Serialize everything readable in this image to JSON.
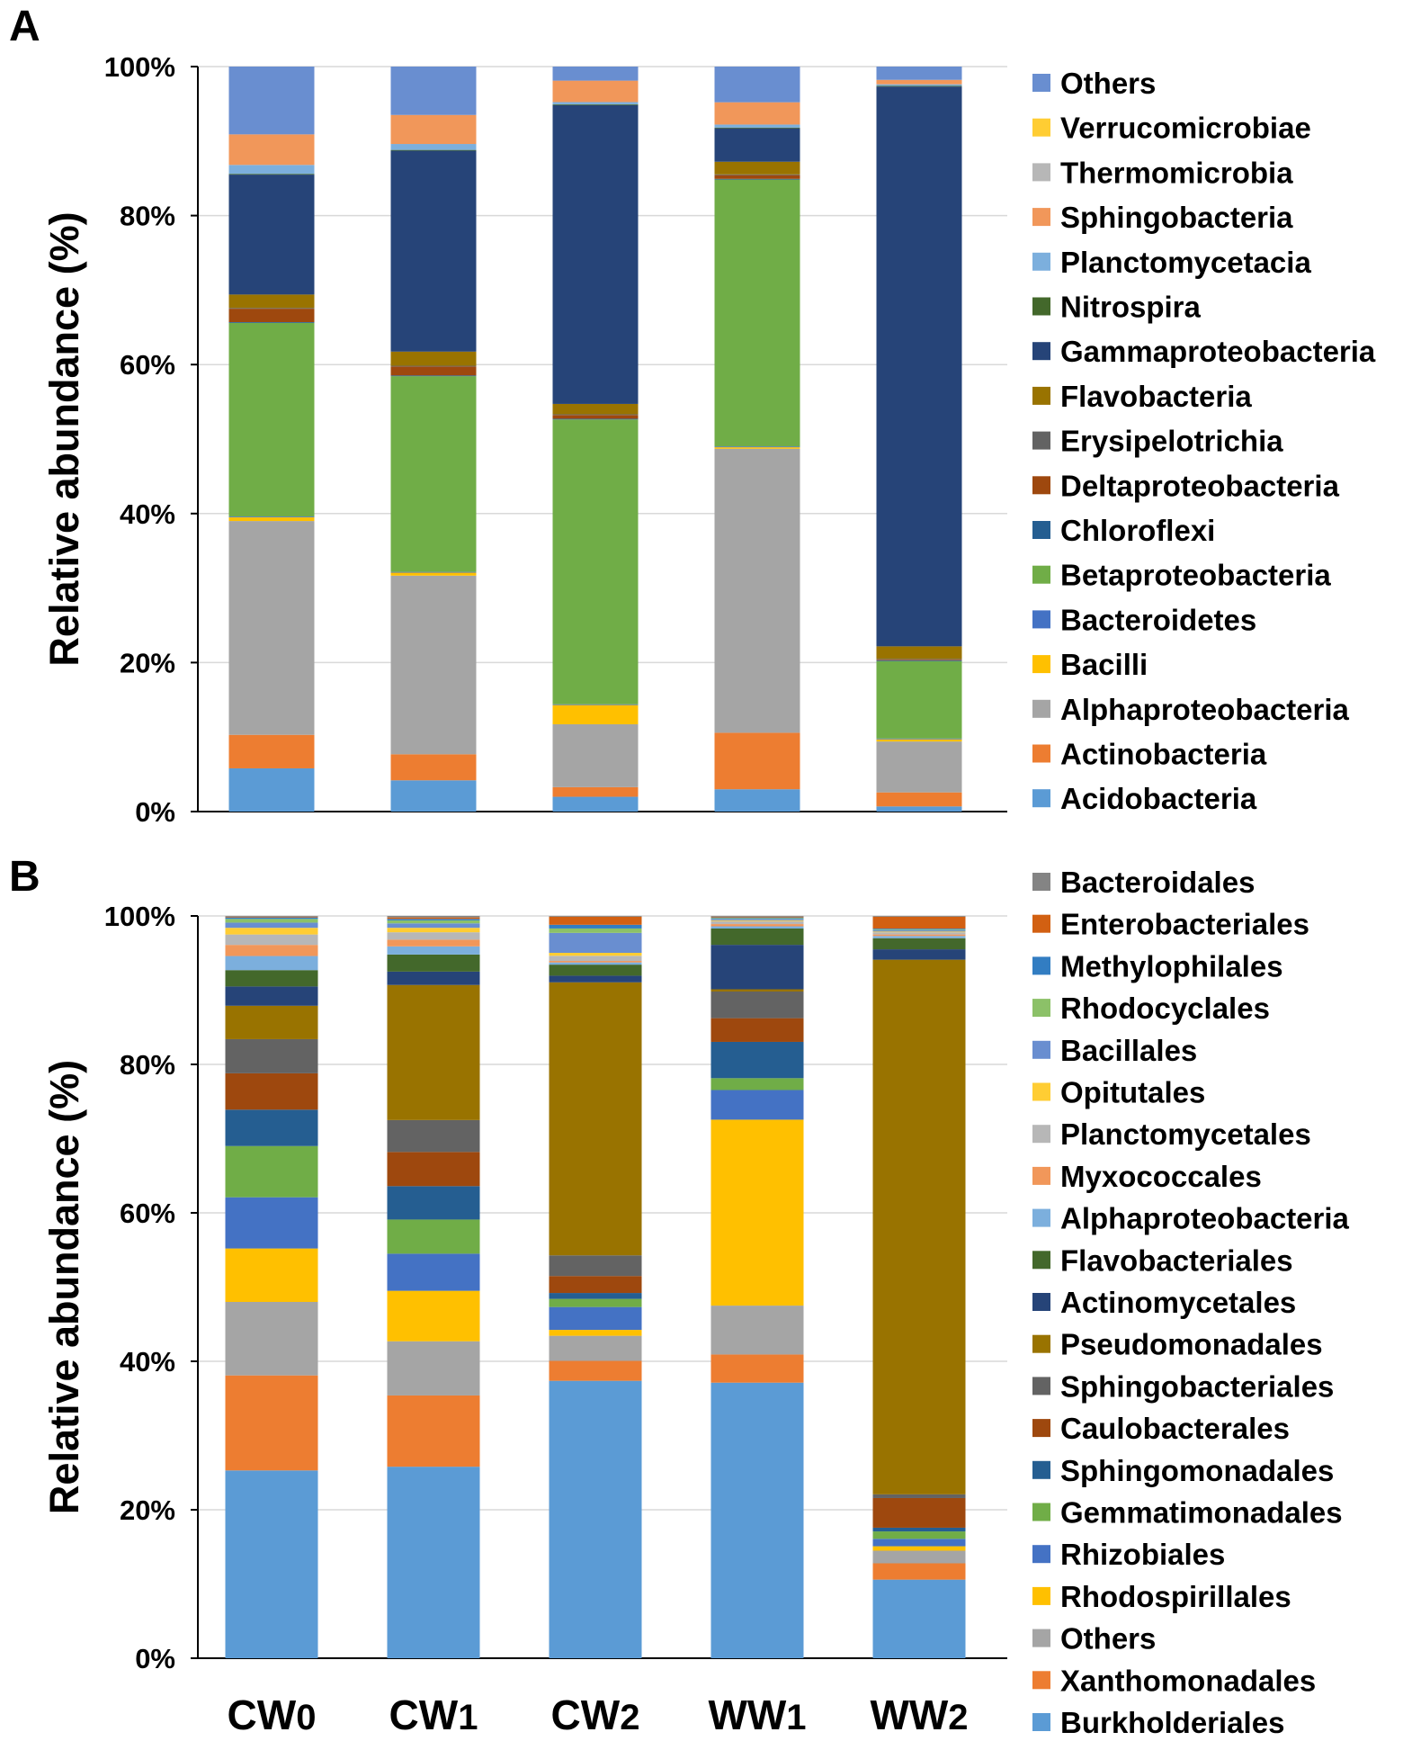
{
  "chart_data": [
    {
      "panel": "A",
      "type": "bar",
      "stacked": true,
      "ylabel": "Relative abundance (%)",
      "xlabel": "",
      "ylim": [
        0,
        100
      ],
      "yticks": [
        "0%",
        "20%",
        "40%",
        "60%",
        "80%",
        "100%"
      ],
      "categories": [
        "CW0",
        "CW1",
        "CW2",
        "WW1",
        "WW2"
      ],
      "category_labels": [
        {
          "main": "CW",
          "sub": "0"
        },
        {
          "main": "CW",
          "sub": "1"
        },
        {
          "main": "CW",
          "sub": "2"
        },
        {
          "main": "WW",
          "sub": "1"
        },
        {
          "main": "WW",
          "sub": "2"
        }
      ],
      "legend_position": "right",
      "series": [
        {
          "name": "Acidobacteria",
          "color": "#5B9BD5",
          "values": [
            5.8,
            4.2,
            2.0,
            3.0,
            0.7
          ]
        },
        {
          "name": "Actinobacteria",
          "color": "#ED7D31",
          "values": [
            4.5,
            3.5,
            1.3,
            7.6,
            1.9
          ]
        },
        {
          "name": "Alphaproteobacteria",
          "color": "#A5A5A5",
          "values": [
            28.7,
            24.0,
            8.5,
            38.2,
            6.9
          ]
        },
        {
          "name": "Bacilli",
          "color": "#FFC000",
          "values": [
            0.5,
            0.4,
            2.6,
            0.2,
            0.3
          ]
        },
        {
          "name": "Bacteroidetes",
          "color": "#4472C4",
          "values": [
            0.1,
            0.1,
            0.1,
            0.1,
            0.1
          ]
        },
        {
          "name": "Betaproteobacteria",
          "color": "#70AD47",
          "values": [
            26.0,
            26.3,
            38.5,
            35.9,
            10.5
          ]
        },
        {
          "name": "Chloroflexi",
          "color": "#255E91",
          "values": [
            0.1,
            0.1,
            0.1,
            0.1,
            0.1
          ]
        },
        {
          "name": "Deltaproteobacteria",
          "color": "#9E480E",
          "values": [
            1.8,
            1.2,
            0.5,
            0.5,
            0.1
          ]
        },
        {
          "name": "Erysipelotrichia",
          "color": "#636363",
          "values": [
            0.1,
            0.1,
            0.1,
            0.1,
            0.1
          ]
        },
        {
          "name": "Flavobacteria",
          "color": "#997300",
          "values": [
            1.8,
            1.9,
            1.4,
            1.7,
            1.7
          ]
        },
        {
          "name": "Gammaproteobacteria",
          "color": "#264478",
          "values": [
            16.1,
            27.0,
            40.4,
            4.5,
            75.9
          ]
        },
        {
          "name": "Nitrospira",
          "color": "#43682B",
          "values": [
            0.1,
            0.1,
            0.1,
            0.1,
            0.1
          ]
        },
        {
          "name": "Planctomycetacia",
          "color": "#7CAFDD",
          "values": [
            1.2,
            0.8,
            0.3,
            0.4,
            0.2
          ]
        },
        {
          "name": "Sphingobacteria",
          "color": "#F1975A",
          "values": [
            4.1,
            3.9,
            2.9,
            3.0,
            0.6
          ]
        },
        {
          "name": "Thermomicrobia",
          "color": "#B7B7B7",
          "values": [
            0.0,
            0.0,
            0.0,
            0.0,
            0.0
          ]
        },
        {
          "name": "Verrucomicrobiae",
          "color": "#FFCD33",
          "values": [
            0.0,
            0.0,
            0.0,
            0.0,
            0.0
          ]
        },
        {
          "name": "Others",
          "color": "#698ED0",
          "values": [
            9.1,
            6.5,
            1.9,
            4.8,
            1.8
          ]
        }
      ]
    },
    {
      "panel": "B",
      "type": "bar",
      "stacked": true,
      "ylabel": "Relative abundance (%)",
      "xlabel": "",
      "ylim": [
        0,
        100
      ],
      "yticks": [
        "0%",
        "20%",
        "40%",
        "60%",
        "80%",
        "100%"
      ],
      "categories": [
        "CW0",
        "CW1",
        "CW2",
        "WW1",
        "WW2"
      ],
      "category_labels": [
        {
          "main": "CW",
          "sub": "0"
        },
        {
          "main": "CW",
          "sub": "1"
        },
        {
          "main": "CW",
          "sub": "2"
        },
        {
          "main": "WW",
          "sub": "1"
        },
        {
          "main": "WW",
          "sub": "2"
        }
      ],
      "legend_position": "right",
      "series": [
        {
          "name": "Burkholderiales",
          "color": "#5B9BD5",
          "values": [
            25.3,
            25.8,
            37.6,
            37.2,
            10.6
          ]
        },
        {
          "name": "Xanthomonadales",
          "color": "#ED7D31",
          "values": [
            12.8,
            9.6,
            2.7,
            3.8,
            2.2
          ]
        },
        {
          "name": "Others",
          "color": "#A5A5A5",
          "values": [
            9.9,
            7.3,
            3.4,
            6.6,
            1.7
          ]
        },
        {
          "name": "Rhodospirillales",
          "color": "#FFC000",
          "values": [
            7.2,
            6.8,
            0.8,
            25.1,
            0.6
          ]
        },
        {
          "name": "Rhizobiales",
          "color": "#4472C4",
          "values": [
            6.9,
            5.0,
            3.1,
            4.0,
            1.0
          ]
        },
        {
          "name": "Gemmatimonadales",
          "color": "#70AD47",
          "values": [
            6.9,
            4.6,
            1.1,
            1.6,
            1.0
          ]
        },
        {
          "name": "Sphingomonadales",
          "color": "#255E91",
          "values": [
            4.9,
            4.5,
            0.8,
            4.9,
            0.5
          ]
        },
        {
          "name": "Caulobacterales",
          "color": "#9E480E",
          "values": [
            4.9,
            4.6,
            2.3,
            3.2,
            4.0
          ]
        },
        {
          "name": "Sphingobacteriales",
          "color": "#636363",
          "values": [
            4.6,
            4.3,
            2.8,
            3.6,
            0.5
          ]
        },
        {
          "name": "Pseudomonadales",
          "color": "#997300",
          "values": [
            4.5,
            18.2,
            37.0,
            0.3,
            72.1
          ]
        },
        {
          "name": "Actinomycetales",
          "color": "#264478",
          "values": [
            2.6,
            1.8,
            0.9,
            6.0,
            1.4
          ]
        },
        {
          "name": "Flavobacteriales",
          "color": "#43682B",
          "values": [
            2.2,
            2.3,
            1.5,
            2.2,
            1.5
          ]
        },
        {
          "name": "Alphaproteobacteria",
          "color": "#7CAFDD",
          "values": [
            1.9,
            1.1,
            0.3,
            0.3,
            0.3
          ]
        },
        {
          "name": "Myxococcales",
          "color": "#F1975A",
          "values": [
            1.5,
            0.9,
            0.2,
            0.3,
            0.2
          ]
        },
        {
          "name": "Planctomycetales",
          "color": "#B7B7B7",
          "values": [
            1.4,
            1.0,
            0.7,
            0.4,
            0.3
          ]
        },
        {
          "name": "Opitutales",
          "color": "#FFCD33",
          "values": [
            0.9,
            0.6,
            0.4,
            0.1,
            0.1
          ]
        },
        {
          "name": "Bacillales",
          "color": "#698ED0",
          "values": [
            0.7,
            0.6,
            2.7,
            0.2,
            0.2
          ]
        },
        {
          "name": "Rhodocyclales",
          "color": "#8CC168",
          "values": [
            0.5,
            0.4,
            0.6,
            0.1,
            0.1
          ]
        },
        {
          "name": "Methylophilales",
          "color": "#327DC2",
          "values": [
            0.2,
            0.2,
            0.5,
            0.1,
            0.1
          ]
        },
        {
          "name": "Enterobacteriales",
          "color": "#D26012",
          "values": [
            0.1,
            0.2,
            1.1,
            0.1,
            1.6
          ]
        },
        {
          "name": "Bacteroidales",
          "color": "#848484",
          "values": [
            0.1,
            0.2,
            0.1,
            0.1,
            0.1
          ]
        }
      ]
    }
  ]
}
